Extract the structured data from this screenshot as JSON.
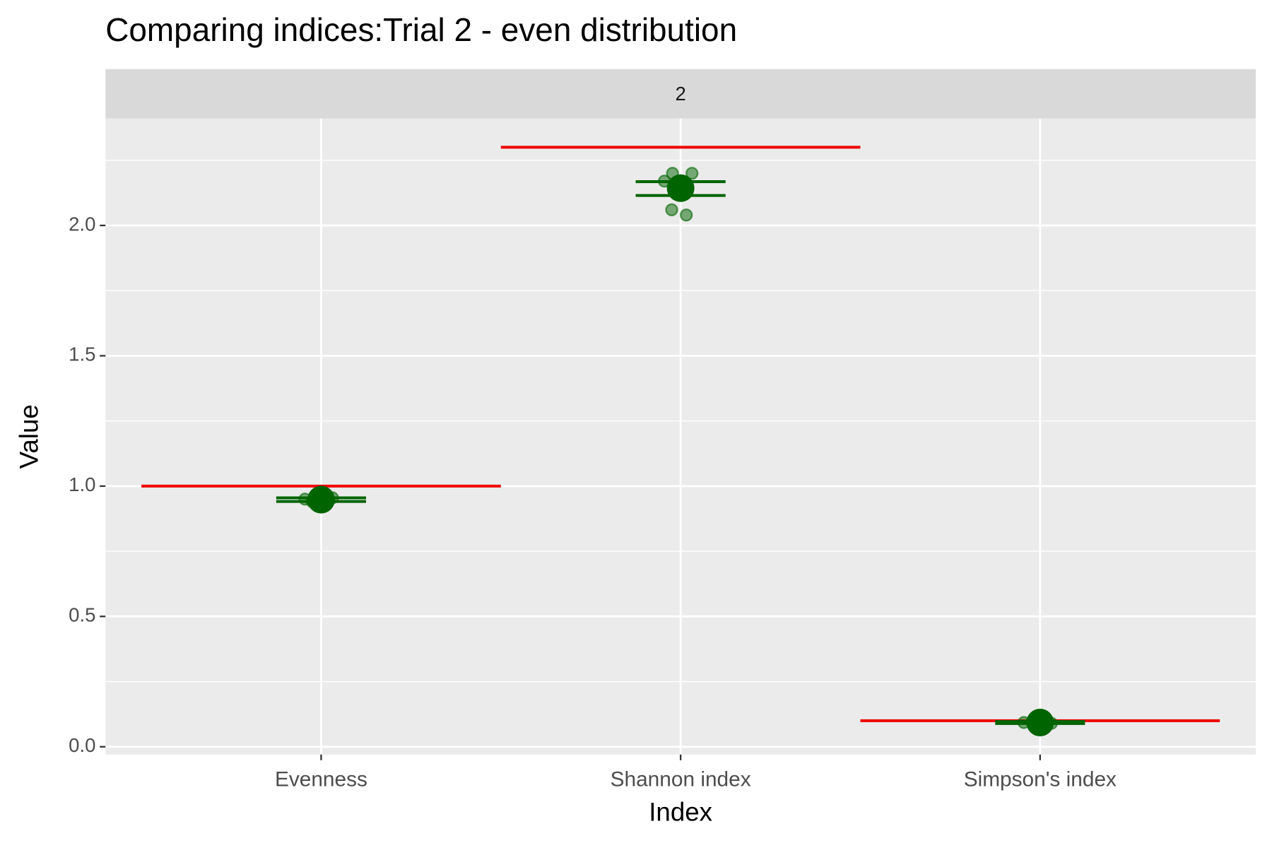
{
  "chart_data": {
    "type": "dot-errorbar",
    "title": "Comparing indices:Trial 2 - even distribution",
    "facet_label": "2",
    "x_label": "Index",
    "y_label": "Value",
    "categories": [
      "Evenness",
      "Shannon index",
      "Simpson's index"
    ],
    "ylim": [
      -0.03,
      2.41
    ],
    "yticks": [
      {
        "value": 0,
        "label": "0.0"
      },
      {
        "value": 0.5,
        "label": "0.5"
      },
      {
        "value": 1,
        "label": "1.0"
      },
      {
        "value": 1.5,
        "label": "1.5"
      },
      {
        "value": 2,
        "label": "2.0"
      }
    ],
    "grid": true,
    "reference": {
      "color": "#ee0000",
      "values": [
        1,
        2.3,
        0.1
      ]
    },
    "mean": {
      "color": "#006400",
      "values": [
        0.948,
        2.143,
        0.093
      ]
    },
    "error_lower": [
      0.941,
      2.115,
      0.089
    ],
    "error_upper": [
      0.955,
      2.168,
      0.097
    ],
    "points": [
      [
        0.95,
        0.945,
        0.955,
        0.94
      ],
      [
        2.17,
        2.2,
        2.2,
        2.06,
        2.04,
        2.14
      ],
      [
        0.093,
        0.095,
        0.09
      ]
    ]
  }
}
